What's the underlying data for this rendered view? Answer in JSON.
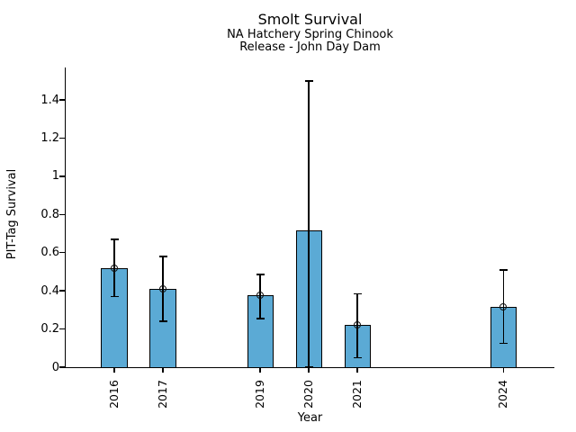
{
  "chart_data": {
    "type": "bar",
    "title": "Smolt Survival",
    "subtitle_line1": "NA Hatchery Spring Chinook",
    "subtitle_line2": "Release - John Day Dam",
    "xlabel": "Year",
    "ylabel": "PIT-Tag Survival",
    "categories": [
      "2016",
      "2017",
      "2019",
      "2020",
      "2021",
      "2024"
    ],
    "values": [
      0.52,
      0.41,
      0.375,
      0.715,
      0.22,
      0.315
    ],
    "points": [
      {
        "year": 2016,
        "label": "2016",
        "value": 0.52,
        "err_low": 0.37,
        "err_high": 0.67,
        "marker": true
      },
      {
        "year": 2017,
        "label": "2017",
        "value": 0.41,
        "err_low": 0.24,
        "err_high": 0.58,
        "marker": true
      },
      {
        "year": 2019,
        "label": "2019",
        "value": 0.375,
        "err_low": 0.255,
        "err_high": 0.485,
        "marker": true
      },
      {
        "year": 2020,
        "label": "2020",
        "value": 0.715,
        "err_low": 0.0,
        "err_high": 1.5,
        "marker": false
      },
      {
        "year": 2021,
        "label": "2021",
        "value": 0.22,
        "err_low": 0.05,
        "err_high": 0.385,
        "marker": true
      },
      {
        "year": 2024,
        "label": "2024",
        "value": 0.315,
        "err_low": 0.125,
        "err_high": 0.51,
        "marker": true
      }
    ],
    "ytick_values": [
      0,
      0.2,
      0.4,
      0.6,
      0.8,
      1,
      1.2,
      1.4
    ],
    "ytick_labels": [
      "0",
      "0.2",
      "0.4",
      "0.6",
      "0.8",
      "1",
      "1.2",
      "1.4"
    ],
    "xlim": [
      2015.0,
      2025.05
    ],
    "ylim": [
      0,
      1.57
    ],
    "grid": false,
    "legend": null,
    "bar_width_years": 0.54,
    "bar_color": "#5BAAD5",
    "bar_edge_color": "#000000",
    "errorbar_color": "#000000",
    "marker_edge_color": "#111111",
    "spine_color": "#000000",
    "text_color": "#000000"
  }
}
